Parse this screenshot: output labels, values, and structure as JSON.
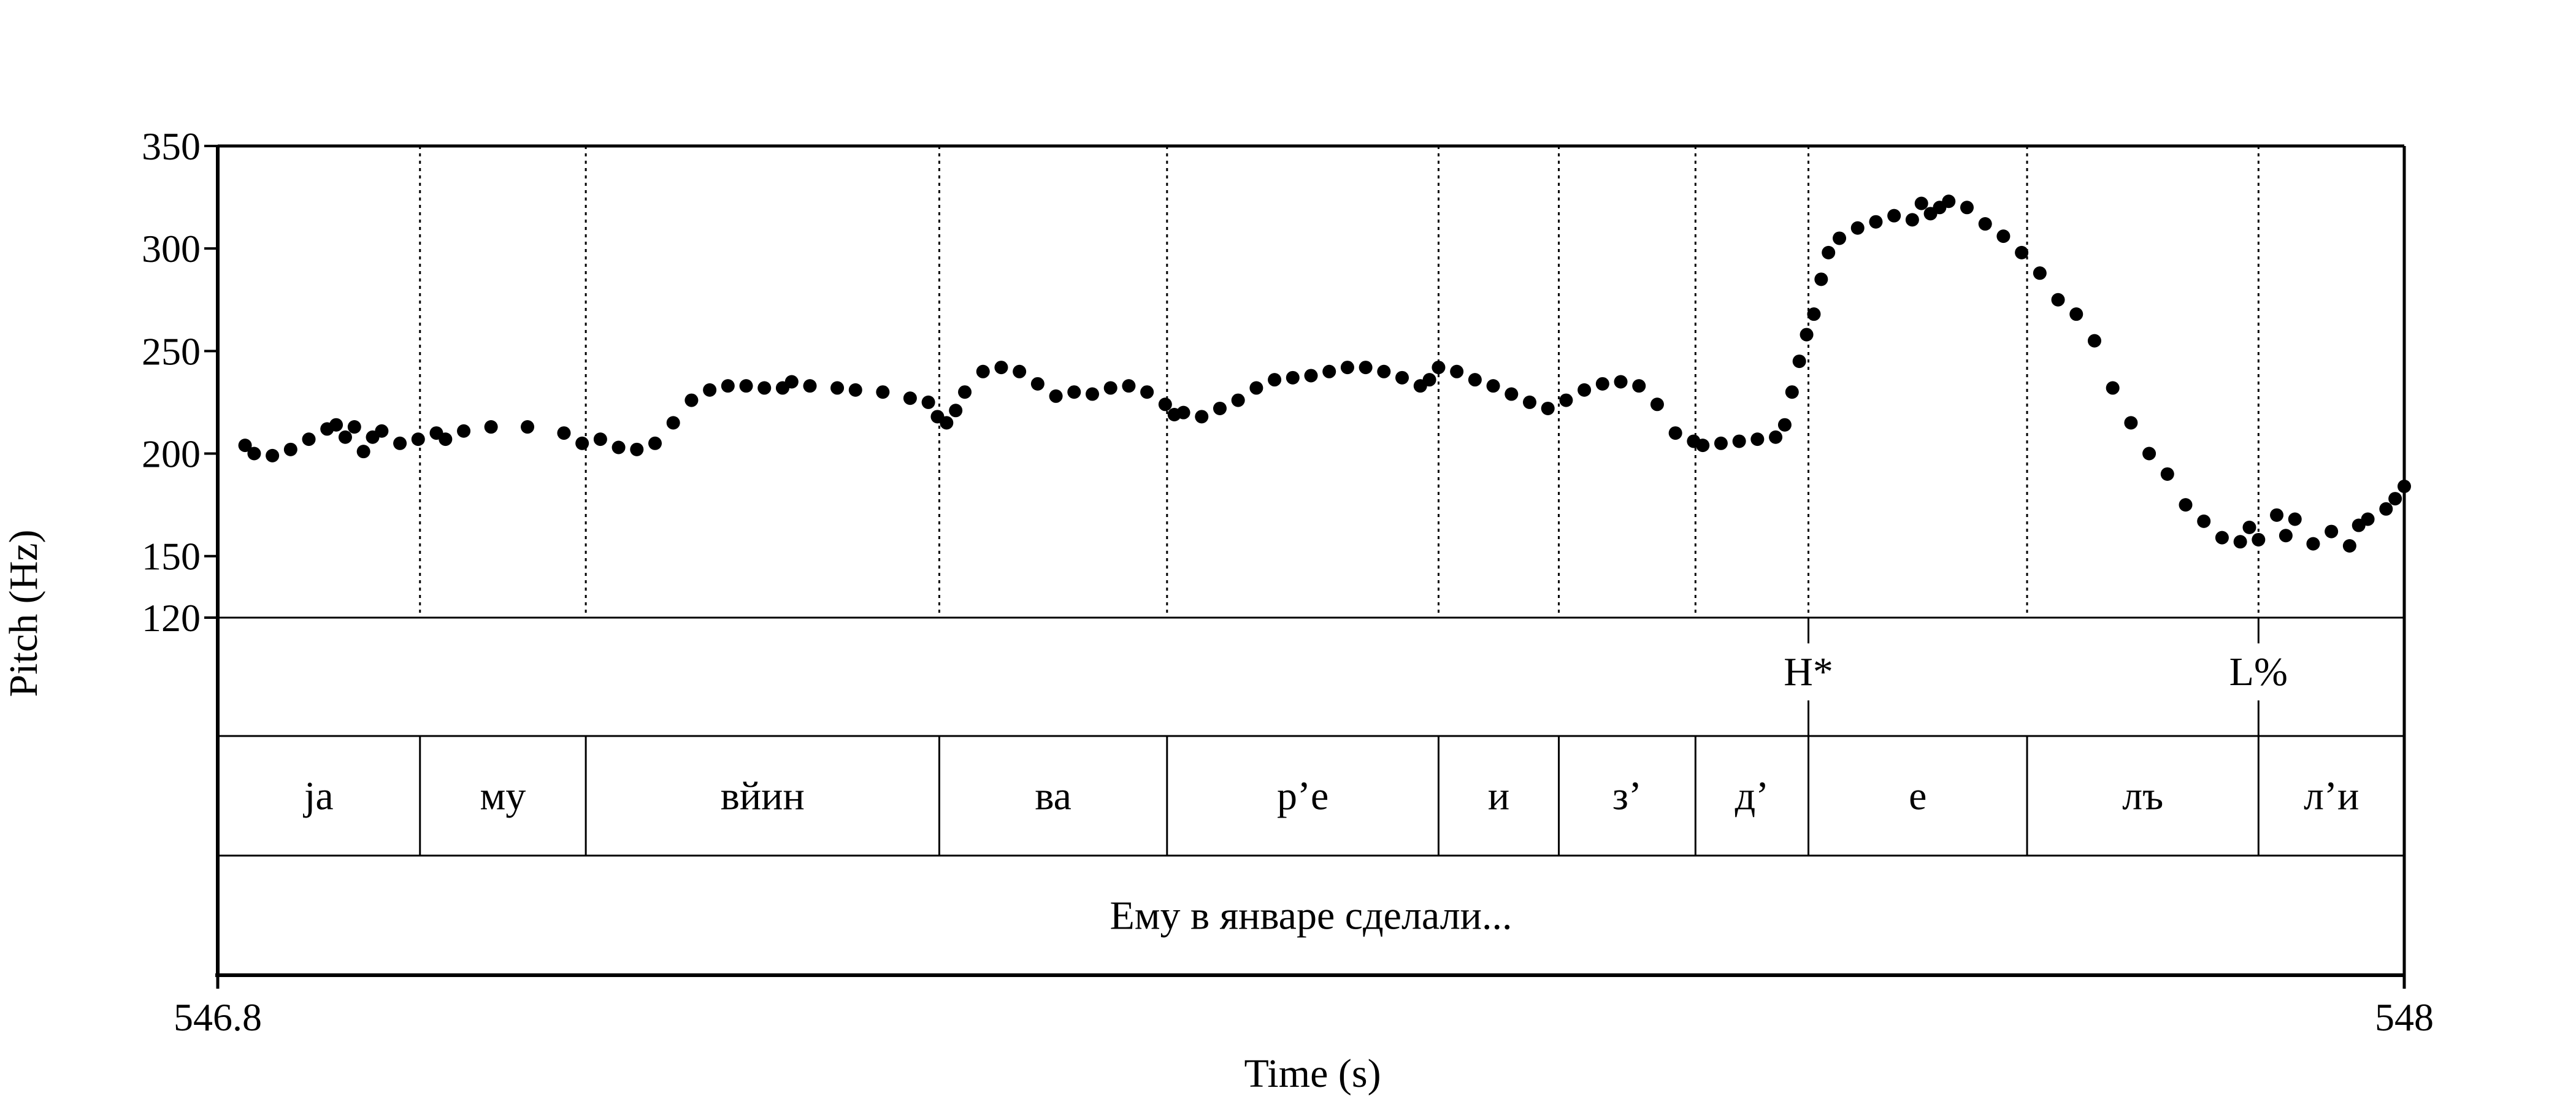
{
  "chart_data": {
    "type": "scatter",
    "ylabel": "Pitch (Hz)",
    "xlabel": "Time (s)",
    "xlim": [
      546.8,
      548
    ],
    "x_tick_labels": [
      "546.8",
      "548"
    ],
    "ylim": [
      120,
      350
    ],
    "y_tick_labels": [
      "350",
      "300",
      "250",
      "200",
      "150",
      "120"
    ],
    "y_ticks": [
      350,
      300,
      250,
      200,
      150,
      120
    ],
    "grid": "dotted vertical lines at segment boundaries",
    "segment_boundaries": [
      546.911,
      547.002,
      547.196,
      547.321,
      547.47,
      547.536,
      547.611,
      547.673,
      547.793,
      547.92
    ],
    "tones": [
      {
        "label": "H*",
        "time": 547.673
      },
      {
        "label": "L%",
        "time": 547.92
      }
    ],
    "syllables": [
      {
        "label": "ja",
        "start": 546.8,
        "end": 546.911
      },
      {
        "label": "му",
        "start": 546.911,
        "end": 547.002
      },
      {
        "label": "вйин",
        "start": 547.002,
        "end": 547.196
      },
      {
        "label": "ва",
        "start": 547.196,
        "end": 547.321
      },
      {
        "label": "р’е",
        "start": 547.321,
        "end": 547.47
      },
      {
        "label": "и",
        "start": 547.47,
        "end": 547.536
      },
      {
        "label": "з’",
        "start": 547.536,
        "end": 547.611
      },
      {
        "label": "д’",
        "start": 547.611,
        "end": 547.673
      },
      {
        "label": "е",
        "start": 547.673,
        "end": 547.793
      },
      {
        "label": "лъ",
        "start": 547.793,
        "end": 547.92
      },
      {
        "label": "л’и",
        "start": 547.92,
        "end": 548.0
      }
    ],
    "sentence": "Ему в январе сделали...",
    "pitch_contour": [
      [
        546.815,
        204
      ],
      [
        546.82,
        200
      ],
      [
        546.83,
        199
      ],
      [
        546.84,
        202
      ],
      [
        546.85,
        207
      ],
      [
        546.86,
        212
      ],
      [
        546.865,
        214
      ],
      [
        546.87,
        208
      ],
      [
        546.875,
        213
      ],
      [
        546.88,
        201
      ],
      [
        546.885,
        208
      ],
      [
        546.89,
        211
      ],
      [
        546.9,
        205
      ],
      [
        546.91,
        207
      ],
      [
        546.92,
        210
      ],
      [
        546.925,
        207
      ],
      [
        546.935,
        211
      ],
      [
        546.95,
        213
      ],
      [
        546.97,
        213
      ],
      [
        546.99,
        210
      ],
      [
        547.0,
        205
      ],
      [
        547.01,
        207
      ],
      [
        547.02,
        203
      ],
      [
        547.03,
        202
      ],
      [
        547.04,
        205
      ],
      [
        547.05,
        215
      ],
      [
        547.06,
        226
      ],
      [
        547.07,
        231
      ],
      [
        547.08,
        233
      ],
      [
        547.09,
        233
      ],
      [
        547.1,
        232
      ],
      [
        547.11,
        232
      ],
      [
        547.115,
        235
      ],
      [
        547.125,
        233
      ],
      [
        547.14,
        232
      ],
      [
        547.15,
        231
      ],
      [
        547.165,
        230
      ],
      [
        547.18,
        227
      ],
      [
        547.19,
        225
      ],
      [
        547.195,
        218
      ],
      [
        547.2,
        215
      ],
      [
        547.205,
        221
      ],
      [
        547.21,
        230
      ],
      [
        547.22,
        240
      ],
      [
        547.23,
        242
      ],
      [
        547.24,
        240
      ],
      [
        547.25,
        234
      ],
      [
        547.26,
        228
      ],
      [
        547.27,
        230
      ],
      [
        547.28,
        229
      ],
      [
        547.29,
        232
      ],
      [
        547.3,
        233
      ],
      [
        547.31,
        230
      ],
      [
        547.32,
        224
      ],
      [
        547.325,
        219
      ],
      [
        547.33,
        220
      ],
      [
        547.34,
        218
      ],
      [
        547.35,
        222
      ],
      [
        547.36,
        226
      ],
      [
        547.37,
        232
      ],
      [
        547.38,
        236
      ],
      [
        547.39,
        237
      ],
      [
        547.4,
        238
      ],
      [
        547.41,
        240
      ],
      [
        547.42,
        242
      ],
      [
        547.43,
        242
      ],
      [
        547.44,
        240
      ],
      [
        547.45,
        237
      ],
      [
        547.46,
        233
      ],
      [
        547.465,
        236
      ],
      [
        547.47,
        242
      ],
      [
        547.48,
        240
      ],
      [
        547.49,
        236
      ],
      [
        547.5,
        233
      ],
      [
        547.51,
        229
      ],
      [
        547.52,
        225
      ],
      [
        547.53,
        222
      ],
      [
        547.54,
        226
      ],
      [
        547.55,
        231
      ],
      [
        547.56,
        234
      ],
      [
        547.57,
        235
      ],
      [
        547.58,
        233
      ],
      [
        547.59,
        224
      ],
      [
        547.6,
        210
      ],
      [
        547.61,
        206
      ],
      [
        547.615,
        204
      ],
      [
        547.625,
        205
      ],
      [
        547.635,
        206
      ],
      [
        547.645,
        207
      ],
      [
        547.655,
        208
      ],
      [
        547.66,
        214
      ],
      [
        547.664,
        230
      ],
      [
        547.668,
        245
      ],
      [
        547.672,
        258
      ],
      [
        547.676,
        268
      ],
      [
        547.68,
        285
      ],
      [
        547.684,
        298
      ],
      [
        547.69,
        305
      ],
      [
        547.7,
        310
      ],
      [
        547.71,
        313
      ],
      [
        547.72,
        316
      ],
      [
        547.73,
        314
      ],
      [
        547.735,
        322
      ],
      [
        547.74,
        317
      ],
      [
        547.745,
        320
      ],
      [
        547.75,
        323
      ],
      [
        547.76,
        320
      ],
      [
        547.77,
        312
      ],
      [
        547.78,
        306
      ],
      [
        547.79,
        298
      ],
      [
        547.8,
        288
      ],
      [
        547.81,
        275
      ],
      [
        547.82,
        268
      ],
      [
        547.83,
        255
      ],
      [
        547.84,
        232
      ],
      [
        547.85,
        215
      ],
      [
        547.86,
        200
      ],
      [
        547.87,
        190
      ],
      [
        547.88,
        175
      ],
      [
        547.89,
        167
      ],
      [
        547.9,
        159
      ],
      [
        547.91,
        157
      ],
      [
        547.915,
        164
      ],
      [
        547.92,
        158
      ],
      [
        547.93,
        170
      ],
      [
        547.935,
        160
      ],
      [
        547.94,
        168
      ],
      [
        547.95,
        156
      ],
      [
        547.96,
        162
      ],
      [
        547.97,
        155
      ],
      [
        547.975,
        165
      ],
      [
        547.98,
        168
      ],
      [
        547.99,
        173
      ],
      [
        547.995,
        178
      ],
      [
        548.0,
        184
      ]
    ],
    "colors": {
      "marker": "#000000",
      "axis": "#000000"
    }
  }
}
